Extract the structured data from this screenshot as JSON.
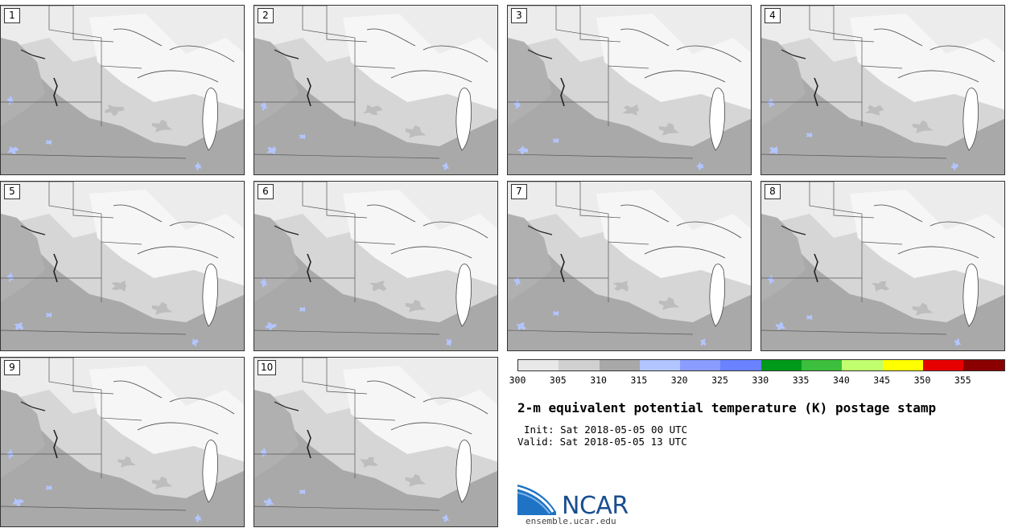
{
  "panels": [
    {
      "label": "1"
    },
    {
      "label": "2"
    },
    {
      "label": "3"
    },
    {
      "label": "4"
    },
    {
      "label": "5"
    },
    {
      "label": "6"
    },
    {
      "label": "7"
    },
    {
      "label": "8"
    },
    {
      "label": "9"
    },
    {
      "label": "10"
    }
  ],
  "colorbar": {
    "colors": [
      "#e8e8e8",
      "#d0d0d0",
      "#a8a8a8",
      "#b3c5ff",
      "#8a9cff",
      "#6a82ff",
      "#009a1a",
      "#3cbf3c",
      "#c0ff6e",
      "#ffff00",
      "#e60000",
      "#8b0000"
    ],
    "ticks": [
      "300",
      "305",
      "310",
      "315",
      "320",
      "325",
      "330",
      "335",
      "340",
      "345",
      "350",
      "355"
    ]
  },
  "title": "2-m equivalent potential temperature (K) postage stamp",
  "init": "Init: Sat 2018-05-05 00 UTC",
  "valid": "Valid: Sat 2018-05-05 13 UTC",
  "logo": {
    "text": "NCAR",
    "url": "ensemble.ucar.edu"
  }
}
